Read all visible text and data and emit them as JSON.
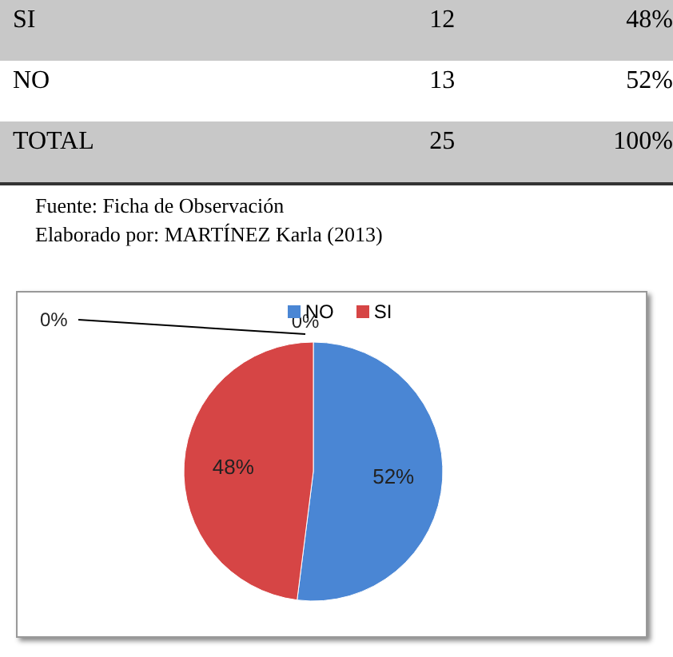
{
  "chart_data": {
    "type": "pie",
    "categories": [
      "NO",
      "SI",
      null,
      null
    ],
    "values": [
      52,
      48,
      0,
      0
    ],
    "colors": [
      "#4a86d4",
      "#d64545",
      "#9bbb59",
      "#8064a2"
    ],
    "value_labels": [
      "52%",
      "48%",
      "0%",
      "0%"
    ],
    "legend": "top",
    "annotations": [
      "SI",
      "12",
      "48%",
      "NO",
      "13",
      "52%",
      "TOTAL",
      "25",
      "100%",
      "Fuente: Ficha de Observación",
      "Elaborado por: MARTÍNEZ Karla  (2013)"
    ]
  }
}
